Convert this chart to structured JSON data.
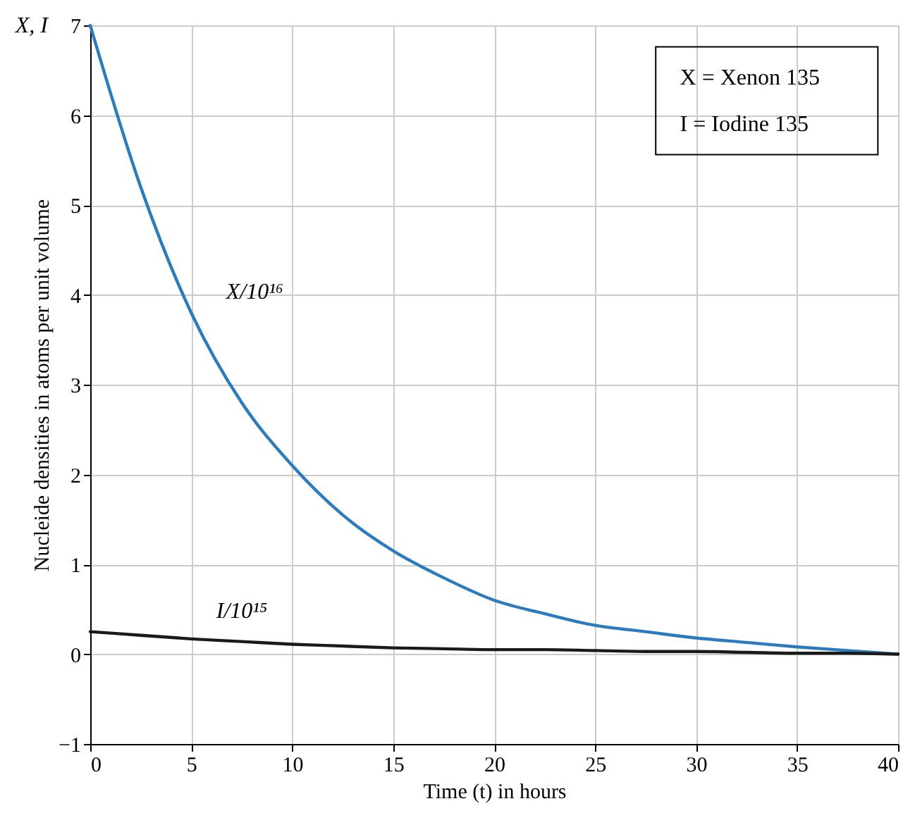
{
  "chart_data": {
    "type": "line",
    "xlabel": "Time (t) in hours",
    "ylabel": "Nucleide densities in atoms per unit volume",
    "x": [
      0,
      2.5,
      5,
      7.5,
      10,
      12.5,
      15,
      17.5,
      20,
      22.5,
      25,
      27.5,
      30,
      32.5,
      35,
      37.5,
      40
    ],
    "series": [
      {
        "name": "X/10¹⁶",
        "color": "#2b7bc0",
        "values": [
          7.0,
          5.2,
          3.8,
          2.8,
          2.1,
          1.55,
          1.15,
          0.85,
          0.6,
          0.45,
          0.32,
          0.25,
          0.18,
          0.13,
          0.08,
          0.04,
          0.0
        ]
      },
      {
        "name": "I/10¹⁵",
        "color": "#1a1a1a",
        "values": [
          0.25,
          0.21,
          0.17,
          0.14,
          0.11,
          0.09,
          0.07,
          0.06,
          0.05,
          0.05,
          0.04,
          0.03,
          0.03,
          0.02,
          0.01,
          0.01,
          0.0
        ]
      }
    ],
    "annotations": [
      "X, I",
      "X = Xenon 135",
      "I = Iodine 135"
    ],
    "xlim": [
      0,
      40
    ],
    "xticks": [
      0,
      5,
      10,
      15,
      20,
      25,
      30,
      35,
      40
    ],
    "ylim": [
      -1,
      7
    ],
    "yticks": [
      {
        "value": -1,
        "label": "−1"
      },
      0,
      1,
      2,
      3,
      4,
      5,
      6,
      7
    ],
    "grid": true,
    "legend": false,
    "marker": "none",
    "line_style": "solid"
  }
}
